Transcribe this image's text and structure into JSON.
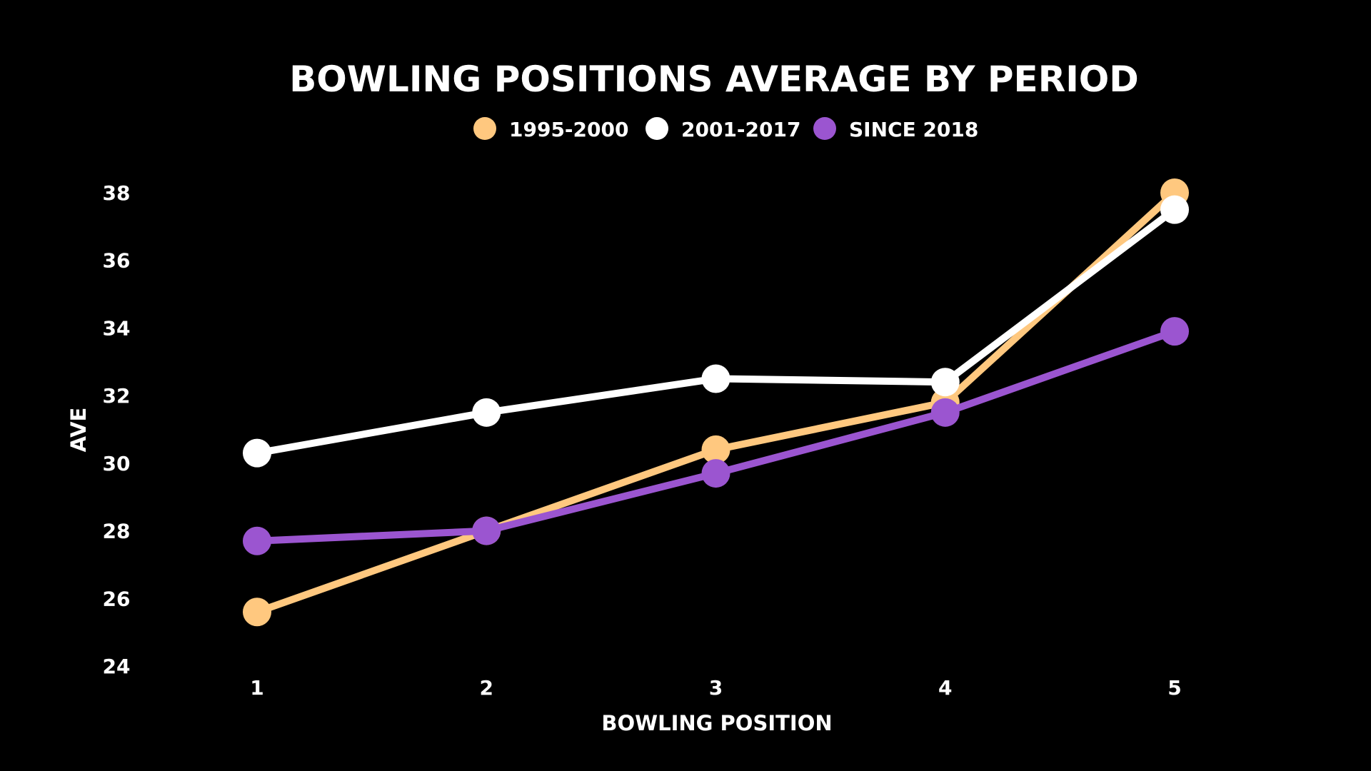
{
  "chart_data": {
    "type": "line",
    "title": "BOWLING POSITIONS AVERAGE BY PERIOD",
    "xlabel": "BOWLING POSITION",
    "ylabel": "AVE",
    "categories": [
      "1",
      "2",
      "3",
      "4",
      "5"
    ],
    "ylim": [
      24,
      38
    ],
    "yticks": [
      "24",
      "26",
      "28",
      "30",
      "32",
      "34",
      "36",
      "38"
    ],
    "grid": false,
    "legend_position": "top-center",
    "series": [
      {
        "name": "1995-2000",
        "color": "#FFC87F",
        "values": [
          25.6,
          28.0,
          30.4,
          31.8,
          38.0
        ]
      },
      {
        "name": "2001-2017",
        "color": "#FFFFFF",
        "values": [
          30.3,
          31.5,
          32.5,
          32.4,
          37.5
        ]
      },
      {
        "name": "SINCE 2018",
        "color": "#9B55D0",
        "values": [
          27.7,
          28.0,
          29.7,
          31.5,
          33.9
        ]
      }
    ]
  }
}
